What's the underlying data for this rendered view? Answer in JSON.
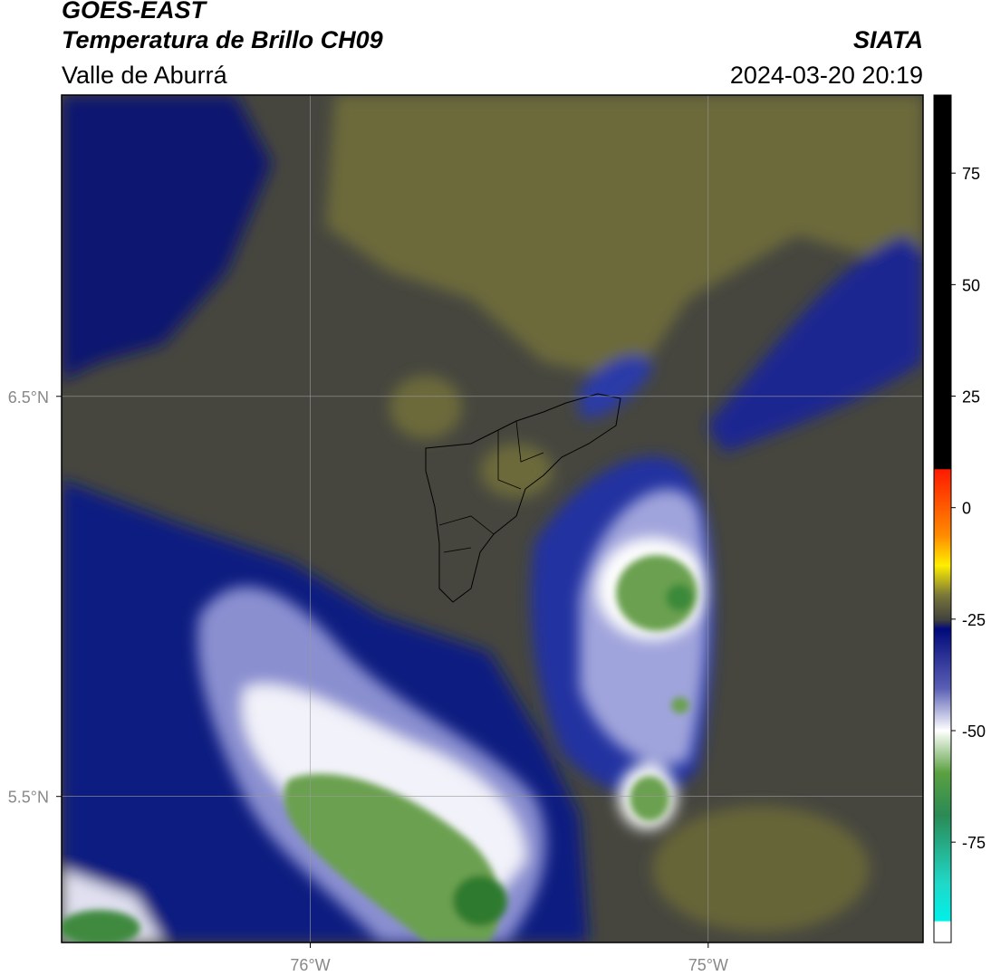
{
  "header": {
    "title": "GOES-EAST",
    "subtitle": "Temperatura de Brillo CH09",
    "source": "SIATA",
    "region": "Valle de Aburrá",
    "datetime": "2024-03-20 20:19"
  },
  "map": {
    "xlim": [
      -76.625,
      -74.46
    ],
    "ylim": [
      5.135,
      7.253
    ],
    "xticks": [
      {
        "value": -76,
        "label": "76°W"
      },
      {
        "value": -75,
        "label": "75°W"
      }
    ],
    "yticks": [
      {
        "value": 6.5,
        "label": "6.5°N"
      },
      {
        "value": 5.5,
        "label": "5.5°N"
      }
    ],
    "grid": true
  },
  "colorbar": {
    "lim": [
      -97.5,
      92.5
    ],
    "ticks": [
      75,
      50,
      25,
      0,
      -25,
      -50,
      -75
    ]
  }
}
